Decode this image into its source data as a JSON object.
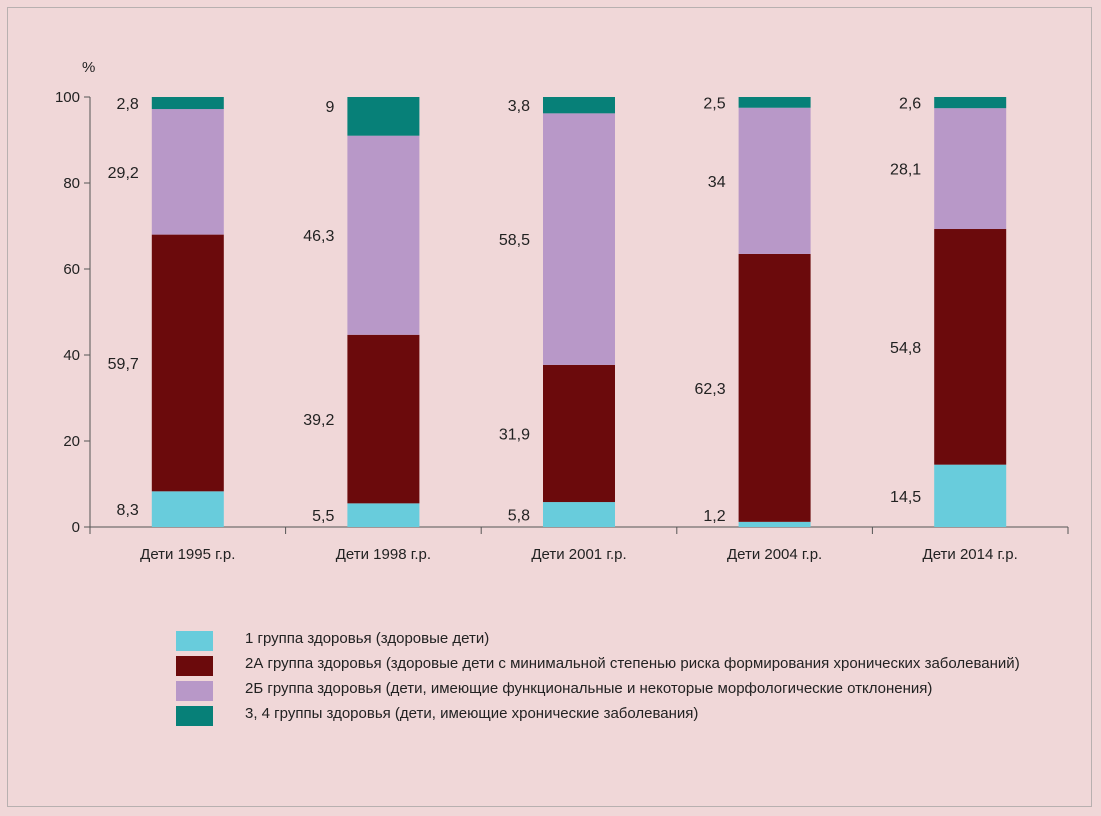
{
  "chart_data": {
    "type": "bar",
    "stacked": true,
    "unit_label": "%",
    "ylim": [
      0,
      100
    ],
    "yticks": [
      "0",
      "20",
      "40",
      "60",
      "80",
      "100"
    ],
    "categories": [
      "Дети 1995 г.р.",
      "Дети 1998 г.р.",
      "Дети 2001 г.р.",
      "Дети 2004 г.р.",
      "Дети 2014 г.р."
    ],
    "series": [
      {
        "name": "1 группа здоровья (здоровые дети)",
        "color": "#68ccdc",
        "values": [
          8.3,
          5.5,
          5.8,
          1.2,
          14.5
        ],
        "labels": [
          "8,3",
          "5,5",
          "5,8",
          "1,2",
          "14,5"
        ]
      },
      {
        "name": "2А группа здоровья (здоровые дети с минимальной степенью риска формирования хронических заболеваний)",
        "color": "#6b0a0c",
        "values": [
          59.7,
          39.2,
          31.9,
          62.3,
          54.8
        ],
        "labels": [
          "59,7",
          "39,2",
          "31,9",
          "62,3",
          "54,8"
        ]
      },
      {
        "name": "2Б группа здоровья (дети, имеющие функциональные и некоторые морфологические отклонения)",
        "color": "#b898c8",
        "values": [
          29.2,
          46.3,
          58.5,
          34,
          28.1
        ],
        "labels": [
          "29,2",
          "46,3",
          "58,5",
          "34",
          "28,1"
        ]
      },
      {
        "name": "3, 4 группы здоровья (дети, имеющие хронические заболевания)",
        "color": "#078078",
        "values": [
          2.8,
          9,
          3.8,
          2.5,
          2.6
        ],
        "labels": [
          "2,8",
          "9",
          "3,8",
          "2,5",
          "2,6"
        ]
      }
    ],
    "grid": false,
    "legend_position": "bottom"
  }
}
